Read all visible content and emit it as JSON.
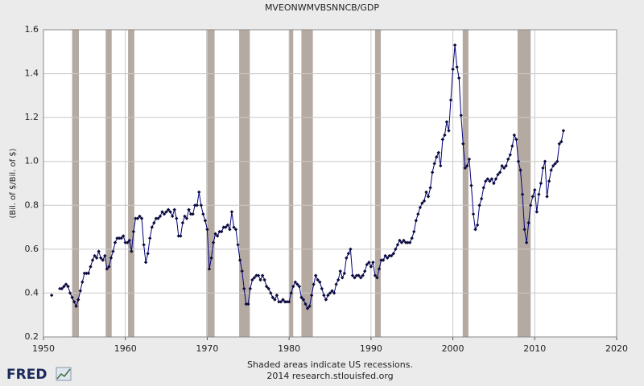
{
  "chart_data": {
    "type": "line",
    "title": "MVEONWMVBSNNCB/GDP",
    "y_label": "(Bil. of $/Bil. of $)",
    "note": "Shaded areas indicate US recessions.",
    "source": "2014 research.stlouisfed.org",
    "logo": "FRED",
    "xlim": [
      1950,
      2020
    ],
    "xticks": [
      1950,
      1960,
      1970,
      1980,
      1990,
      2000,
      2010,
      2020
    ],
    "ylim": [
      0.2,
      1.6
    ],
    "yticks": [
      0.2,
      0.4,
      0.6,
      0.8,
      {
        "value": 1,
        "label": "1.0"
      },
      1.2,
      1.4,
      1.6
    ],
    "grid": true,
    "recession_color": "#b5aaa2",
    "recessions": [
      [
        1953.5,
        1954.33
      ],
      [
        1957.6,
        1958.33
      ],
      [
        1960.33,
        1961.1
      ],
      [
        1969.9,
        1970.9
      ],
      [
        1973.9,
        1975.2
      ],
      [
        1980.0,
        1980.5
      ],
      [
        1981.5,
        1982.9
      ],
      [
        1990.5,
        1991.2
      ],
      [
        2001.2,
        2001.9
      ],
      [
        2007.9,
        2009.5
      ]
    ],
    "x": [
      1951,
      1951.5,
      1952,
      1952.25,
      1952.5,
      1952.75,
      1953,
      1953.25,
      1953.5,
      1953.75,
      1954,
      1954.25,
      1954.5,
      1954.75,
      1955,
      1955.25,
      1955.5,
      1955.75,
      1956,
      1956.25,
      1956.5,
      1956.75,
      1957,
      1957.25,
      1957.5,
      1957.75,
      1958,
      1958.25,
      1958.5,
      1958.75,
      1959,
      1959.25,
      1959.5,
      1959.75,
      1960,
      1960.25,
      1960.5,
      1960.75,
      1961,
      1961.25,
      1961.5,
      1961.75,
      1962,
      1962.25,
      1962.5,
      1962.75,
      1963,
      1963.25,
      1963.5,
      1963.75,
      1964,
      1964.25,
      1964.5,
      1964.75,
      1965,
      1965.25,
      1965.5,
      1965.75,
      1966,
      1966.25,
      1966.5,
      1966.75,
      1967,
      1967.25,
      1967.5,
      1967.75,
      1968,
      1968.25,
      1968.5,
      1968.75,
      1969,
      1969.25,
      1969.5,
      1969.75,
      1970,
      1970.25,
      1970.5,
      1970.75,
      1971,
      1971.25,
      1971.5,
      1971.75,
      1972,
      1972.25,
      1972.5,
      1972.75,
      1973,
      1973.25,
      1973.5,
      1973.75,
      1974,
      1974.25,
      1974.5,
      1974.75,
      1975,
      1975.25,
      1975.5,
      1975.75,
      1976,
      1976.25,
      1976.5,
      1976.75,
      1977,
      1977.25,
      1977.5,
      1977.75,
      1978,
      1978.25,
      1978.5,
      1978.75,
      1979,
      1979.25,
      1979.5,
      1979.75,
      1980,
      1980.25,
      1980.5,
      1980.75,
      1981,
      1981.25,
      1981.5,
      1981.75,
      1982,
      1982.25,
      1982.5,
      1982.75,
      1983,
      1983.25,
      1983.5,
      1983.75,
      1984,
      1984.25,
      1984.5,
      1984.75,
      1985,
      1985.25,
      1985.5,
      1985.75,
      1986,
      1986.25,
      1986.5,
      1986.75,
      1987,
      1987.25,
      1987.5,
      1987.75,
      1988,
      1988.25,
      1988.5,
      1988.75,
      1989,
      1989.25,
      1989.5,
      1989.75,
      1990,
      1990.25,
      1990.5,
      1990.75,
      1991,
      1991.25,
      1991.5,
      1991.75,
      1992,
      1992.25,
      1992.5,
      1992.75,
      1993,
      1993.25,
      1993.5,
      1993.75,
      1994,
      1994.25,
      1994.5,
      1994.75,
      1995,
      1995.25,
      1995.5,
      1995.75,
      1996,
      1996.25,
      1996.5,
      1996.75,
      1997,
      1997.25,
      1997.5,
      1997.75,
      1998,
      1998.25,
      1998.5,
      1998.75,
      1999,
      1999.25,
      1999.5,
      1999.75,
      2000,
      2000.25,
      2000.5,
      2000.75,
      2001,
      2001.25,
      2001.5,
      2001.75,
      2002,
      2002.25,
      2002.5,
      2002.75,
      2003,
      2003.25,
      2003.5,
      2003.75,
      2004,
      2004.25,
      2004.5,
      2004.75,
      2005,
      2005.25,
      2005.5,
      2005.75,
      2006,
      2006.25,
      2006.5,
      2006.75,
      2007,
      2007.25,
      2007.5,
      2007.75,
      2008,
      2008.25,
      2008.5,
      2008.75,
      2009,
      2009.25,
      2009.5,
      2009.75,
      2010,
      2010.25,
      2010.5,
      2010.75,
      2011,
      2011.25,
      2011.5,
      2011.75,
      2012,
      2012.25,
      2012.5,
      2012.75,
      2013,
      2013.25,
      2013.5
    ],
    "series": [
      {
        "name": "MVEONWMVBSNNCB/GDP",
        "color": "#00007a",
        "values": [
          0.39,
          null,
          0.42,
          0.42,
          0.43,
          0.44,
          0.43,
          0.4,
          0.38,
          0.36,
          0.34,
          0.37,
          0.41,
          0.45,
          0.49,
          0.49,
          0.49,
          0.52,
          0.55,
          0.57,
          0.56,
          0.59,
          0.56,
          0.55,
          0.57,
          0.51,
          0.52,
          0.56,
          0.59,
          0.63,
          0.65,
          0.65,
          0.65,
          0.66,
          0.63,
          0.63,
          0.64,
          0.59,
          0.68,
          0.74,
          0.74,
          0.75,
          0.74,
          0.62,
          0.54,
          0.58,
          0.65,
          0.7,
          0.72,
          0.74,
          0.74,
          0.75,
          0.77,
          0.76,
          0.77,
          0.78,
          0.77,
          0.75,
          0.78,
          0.74,
          0.66,
          0.66,
          0.72,
          0.75,
          0.74,
          0.78,
          0.76,
          0.76,
          0.8,
          0.8,
          0.86,
          0.8,
          0.76,
          0.73,
          0.69,
          0.51,
          0.56,
          0.63,
          0.67,
          0.66,
          0.68,
          0.68,
          0.7,
          0.7,
          0.71,
          0.69,
          0.77,
          0.7,
          0.69,
          0.62,
          0.55,
          0.5,
          0.42,
          0.35,
          0.35,
          0.42,
          0.46,
          0.47,
          0.48,
          0.48,
          0.46,
          0.48,
          0.46,
          0.43,
          0.42,
          0.4,
          0.38,
          0.37,
          0.39,
          0.36,
          0.36,
          0.37,
          0.36,
          0.36,
          0.36,
          0.4,
          0.43,
          0.45,
          0.44,
          0.43,
          0.38,
          0.37,
          0.35,
          0.33,
          0.34,
          0.39,
          0.44,
          0.48,
          0.46,
          0.45,
          0.42,
          0.39,
          0.37,
          0.39,
          0.4,
          0.41,
          0.4,
          0.44,
          0.46,
          0.5,
          0.47,
          0.49,
          0.56,
          0.58,
          0.6,
          0.48,
          0.47,
          0.48,
          0.48,
          0.47,
          0.48,
          0.5,
          0.53,
          0.54,
          0.52,
          0.54,
          0.48,
          0.47,
          0.51,
          0.55,
          0.55,
          0.57,
          0.56,
          0.57,
          0.57,
          0.58,
          0.6,
          0.62,
          0.64,
          0.63,
          0.64,
          0.63,
          0.63,
          0.63,
          0.65,
          0.68,
          0.73,
          0.76,
          0.79,
          0.81,
          0.82,
          0.86,
          0.84,
          0.88,
          0.95,
          0.99,
          1.02,
          1.04,
          0.98,
          1.1,
          1.12,
          1.18,
          1.14,
          1.28,
          1.42,
          1.53,
          1.43,
          1.38,
          1.21,
          1.08,
          0.97,
          0.98,
          1.01,
          0.89,
          0.76,
          0.69,
          0.71,
          0.8,
          0.83,
          0.88,
          0.91,
          0.92,
          0.91,
          0.92,
          0.9,
          0.92,
          0.94,
          0.95,
          0.98,
          0.97,
          0.98,
          1.01,
          1.03,
          1.07,
          1.12,
          1.1,
          1.0,
          0.96,
          0.85,
          0.69,
          0.63,
          0.72,
          0.8,
          0.84,
          0.87,
          0.77,
          0.85,
          0.9,
          0.97,
          1.0,
          0.84,
          0.91,
          0.96,
          0.98,
          0.99,
          1.0,
          1.08,
          1.09,
          1.14
        ]
      }
    ]
  }
}
